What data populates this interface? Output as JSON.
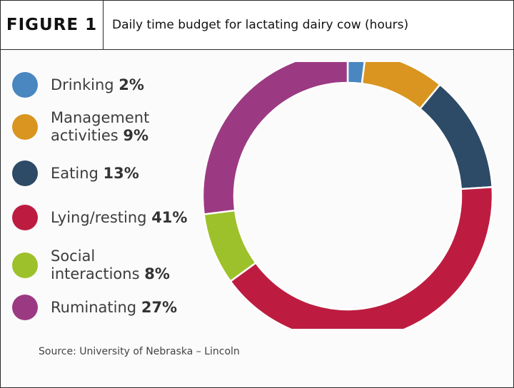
{
  "header": {
    "figure_label": "FIGURE 1",
    "title": "Daily time budget for lactating dairy cow (hours)"
  },
  "source": "Source: University of Nebraska – Lincoln",
  "chart_data": {
    "type": "pie",
    "variant": "donut",
    "title": "Daily time budget for lactating dairy cow (hours)",
    "legend_position": "left",
    "slices": [
      {
        "label_lines": [
          "Drinking"
        ],
        "value": 2,
        "value_label": "2%",
        "color": "#4a86c0"
      },
      {
        "label_lines": [
          "Management",
          "activities"
        ],
        "value": 9,
        "value_label": "9%",
        "color": "#d9951f"
      },
      {
        "label_lines": [
          "Eating"
        ],
        "value": 13,
        "value_label": "13%",
        "color": "#2d4a66"
      },
      {
        "label_lines": [
          "Lying/resting"
        ],
        "value": 41,
        "value_label": "41%",
        "color": "#bd1c40"
      },
      {
        "label_lines": [
          "Social",
          "interactions"
        ],
        "value": 8,
        "value_label": "8%",
        "color": "#9dc12b"
      },
      {
        "label_lines": [
          "Ruminating"
        ],
        "value": 27,
        "value_label": "27%",
        "color": "#9b3a82"
      }
    ]
  }
}
